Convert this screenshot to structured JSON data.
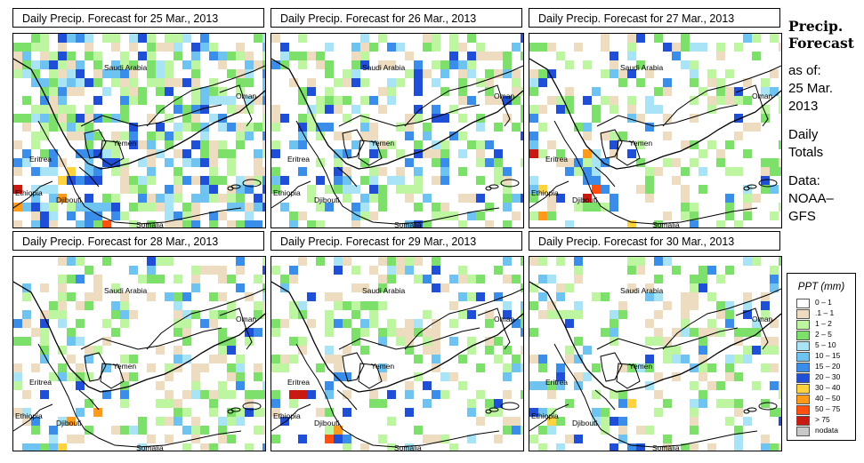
{
  "panels": [
    {
      "title": "Daily Precip. Forecast for  25 Mar., 2013",
      "density": 0.62,
      "wet": 0.55
    },
    {
      "title": "Daily Precip. Forecast for  26 Mar., 2013",
      "density": 0.45,
      "wet": 0.45
    },
    {
      "title": "Daily Precip. Forecast for  27 Mar., 2013",
      "density": 0.33,
      "wet": 0.4
    },
    {
      "title": "Daily Precip. Forecast for  28 Mar., 2013",
      "density": 0.36,
      "wet": 0.35
    },
    {
      "title": "Daily Precip. Forecast for  29 Mar., 2013",
      "density": 0.35,
      "wet": 0.4
    },
    {
      "title": "Daily Precip. Forecast for  30 Mar., 2013",
      "density": 0.34,
      "wet": 0.45
    }
  ],
  "map_labels": {
    "saudi_arabia": "Saudi Arabia",
    "oman": "Oman",
    "yemen": "Yemen",
    "eritrea": "Eritrea",
    "ethiopia": "Ethiopia",
    "djibouti": "Djibouti",
    "somalia": "Somalia"
  },
  "side": {
    "heading_line1": "Precip.",
    "heading_line2": "Forecast",
    "asof": "as of:",
    "date_line1": "25 Mar.",
    "date_line2": "2013",
    "totals_line1": "Daily",
    "totals_line2": "Totals",
    "data_line1": "Data:",
    "data_line2": "NOAA–",
    "data_line3": "GFS"
  },
  "legend": {
    "title": "PPT (mm)",
    "items": [
      {
        "label": "0 – 1",
        "color": "#ffffff"
      },
      {
        "label": ".1 – 1",
        "color": "#eedcc0"
      },
      {
        "label": "1 – 2",
        "color": "#bdf5a0"
      },
      {
        "label": "2 – 5",
        "color": "#7de06a"
      },
      {
        "label": "5 – 10",
        "color": "#a8e4f5"
      },
      {
        "label": "10 – 15",
        "color": "#6ec3f0"
      },
      {
        "label": "15 – 20",
        "color": "#3a8de8"
      },
      {
        "label": "20 – 30",
        "color": "#1f4fd6"
      },
      {
        "label": "30 – 40",
        "color": "#ffd340"
      },
      {
        "label": "40 – 50",
        "color": "#ff9a1a"
      },
      {
        "label": "50 – 75",
        "color": "#ff5010"
      },
      {
        "label": "> 75",
        "color": "#c81a10"
      },
      {
        "label": "nodata",
        "color": "#c8c8c8"
      }
    ]
  }
}
